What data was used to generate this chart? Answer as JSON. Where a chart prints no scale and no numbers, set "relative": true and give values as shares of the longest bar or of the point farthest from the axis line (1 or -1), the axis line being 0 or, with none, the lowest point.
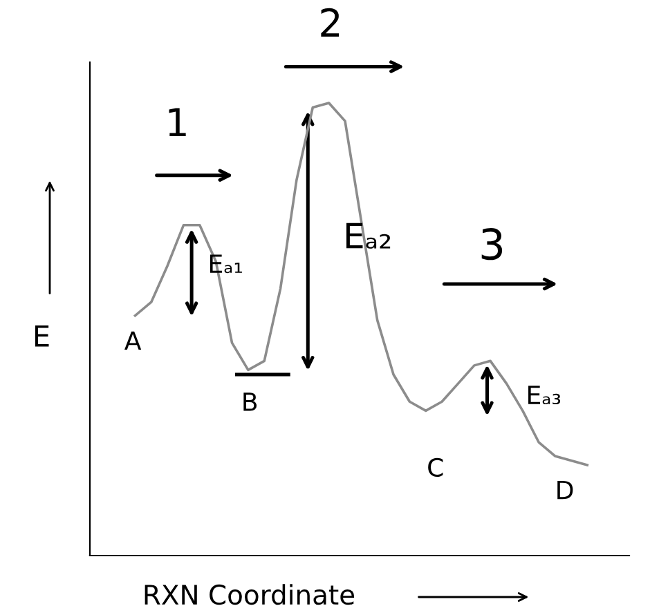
{
  "chart_data": {
    "type": "line",
    "relative": true,
    "xlabel": "RXN Coordinate",
    "ylabel": "E",
    "categories": [
      null,
      null,
      null,
      null,
      null,
      null,
      null,
      null,
      null,
      null,
      null,
      null,
      null,
      null,
      null,
      null,
      null,
      null,
      null,
      null,
      null,
      null,
      null,
      null,
      null,
      null,
      null,
      null,
      null
    ],
    "series": [
      {
        "color": "#8c8c8c",
        "values": [
          0.53,
          0.56,
          0.64,
          0.73,
          0.73,
          0.65,
          0.47,
          0.41,
          0.43,
          0.59,
          0.83,
          0.99,
          1,
          0.96,
          0.74,
          0.52,
          0.4,
          0.34,
          0.32,
          0.34,
          0.38,
          0.42,
          0.43,
          0.38,
          0.32,
          0.25,
          0.22,
          0.21,
          0.2
        ]
      }
    ],
    "annotations": [
      "A",
      "B",
      "C",
      "D",
      "1",
      "2",
      "3",
      "Eₐ₁",
      "Eₐ₂",
      "Eₐ₃"
    ],
    "marker": "none",
    "line_style": "solid",
    "legend": false
  }
}
